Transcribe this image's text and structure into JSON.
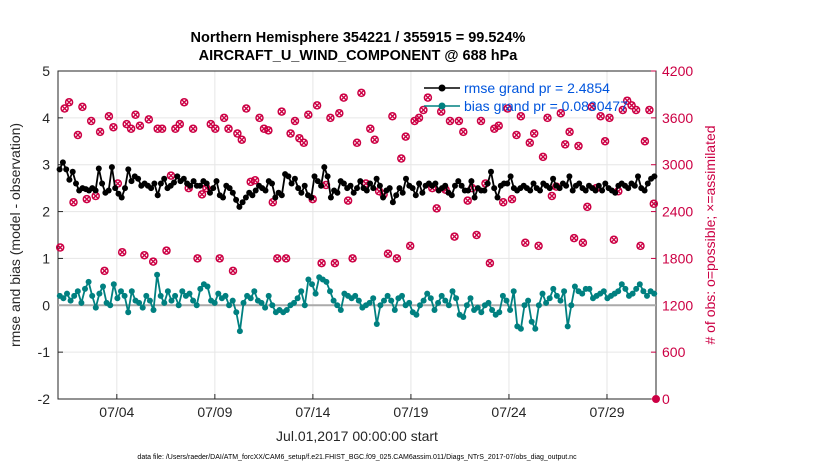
{
  "chart_data": {
    "type": "line",
    "title_line1": "Northern Hemisphere 354221 / 355915 = 99.524%",
    "title_line2": "AIRCRAFT_U_WIND_COMPONENT @ 688 hPa",
    "xlabel": "Jul.01,2017 00:00:00 start",
    "ylabel": "rmse and bias (model - observation)",
    "ylabel_right": "# of obs: o=possible; ×=assimilated",
    "x_start_label": "Jul.01,2017 00:00:00 start",
    "x_range_days": [
      1.0,
      31.5
    ],
    "x_ticks": [
      {
        "day": 4,
        "label": "07/04"
      },
      {
        "day": 9,
        "label": "07/09"
      },
      {
        "day": 14,
        "label": "07/14"
      },
      {
        "day": 19,
        "label": "07/19"
      },
      {
        "day": 24,
        "label": "07/24"
      },
      {
        "day": 29,
        "label": "07/29"
      }
    ],
    "ylim": [
      -2,
      5
    ],
    "y_ticks": [
      "-2",
      "-1",
      "0",
      "1",
      "2",
      "3",
      "4",
      "5"
    ],
    "ylim_right": [
      0,
      4200
    ],
    "y_ticks_right": [
      "0",
      "600",
      "1200",
      "1800",
      "2400",
      "3000",
      "3600",
      "4200"
    ],
    "grid": true,
    "legend": "top-right",
    "series": [
      {
        "name": "rmse grand pr = 2.4854",
        "color": "#000000",
        "marker": "filled-circle",
        "values": [
          2.9,
          3.05,
          2.9,
          2.68,
          2.85,
          2.6,
          2.45,
          2.5,
          2.48,
          2.45,
          2.5,
          2.45,
          2.92,
          2.6,
          2.4,
          2.45,
          2.95,
          2.5,
          2.38,
          2.3,
          2.5,
          2.9,
          2.65,
          2.75,
          2.7,
          2.55,
          2.6,
          2.55,
          2.5,
          2.6,
          2.35,
          2.6,
          2.7,
          2.5,
          2.55,
          2.62,
          2.75,
          2.65,
          2.7,
          2.6,
          2.55,
          2.65,
          2.55,
          2.55,
          2.65,
          2.6,
          2.4,
          2.5,
          2.65,
          2.35,
          2.3,
          2.55,
          2.5,
          2.4,
          2.25,
          2.1,
          2.2,
          2.3,
          2.4,
          2.35,
          2.45,
          2.55,
          2.5,
          2.45,
          2.65,
          2.6,
          2.3,
          2.4,
          2.35,
          2.8,
          2.75,
          2.6,
          2.7,
          2.5,
          2.4,
          2.55,
          2.35,
          2.3,
          2.75,
          2.65,
          2.55,
          2.95,
          2.75,
          2.3,
          2.45,
          2.4,
          2.65,
          2.6,
          2.5,
          2.55,
          2.4,
          2.5,
          2.65,
          2.5,
          2.45,
          2.6,
          2.5,
          2.7,
          2.55,
          2.3,
          2.45,
          2.5,
          2.2,
          2.35,
          2.5,
          2.4,
          2.7,
          2.55,
          2.5,
          2.35,
          2.6,
          2.4,
          2.55,
          2.6,
          2.55,
          2.6,
          2.45,
          2.5,
          2.55,
          2.4,
          2.35,
          2.55,
          2.65,
          2.55,
          2.45,
          2.45,
          2.65,
          2.3,
          2.5,
          2.45,
          2.45,
          2.6,
          2.85,
          2.5,
          2.3,
          2.55,
          2.6,
          2.6,
          2.75,
          2.5,
          2.45,
          2.5,
          2.55,
          2.5,
          2.45,
          2.6,
          2.5,
          2.45,
          2.6,
          2.55,
          2.5,
          2.7,
          2.55,
          2.5,
          2.6,
          2.55,
          2.75,
          2.45,
          2.55,
          2.6,
          2.5,
          2.45,
          2.55,
          2.5,
          2.45,
          2.55,
          2.45,
          2.6,
          2.5,
          2.45,
          2.4,
          2.55,
          2.6,
          2.55,
          2.5,
          2.6,
          2.55,
          2.75,
          2.5,
          2.45,
          2.6,
          2.7,
          2.75
        ]
      },
      {
        "name": "bias grand pr = 0.0830477",
        "color": "#008080",
        "marker": "filled-circle",
        "values": [
          0.2,
          0.15,
          0.25,
          0.1,
          0.2,
          0.3,
          0.05,
          0.35,
          0.5,
          0.2,
          -0.05,
          0.25,
          0.4,
          0.05,
          0.0,
          0.45,
          0.15,
          0.3,
          0.2,
          -0.15,
          0.3,
          0.1,
          0.05,
          -0.05,
          0.2,
          0.1,
          -0.1,
          0.65,
          0.2,
          0.05,
          0.3,
          0.1,
          0.2,
          0.0,
          0.3,
          0.2,
          0.25,
          0.1,
          0.0,
          0.35,
          0.45,
          0.4,
          0.1,
          0.05,
          0.25,
          0.15,
          0.2,
          0.0,
          0.1,
          -0.15,
          -0.55,
          0.05,
          0.2,
          0.15,
          0.3,
          0.1,
          0.05,
          -0.05,
          0.2,
          0.0,
          -0.15,
          -0.1,
          -0.15,
          -0.1,
          0.0,
          0.05,
          0.15,
          0.3,
          0.0,
          0.55,
          0.45,
          0.25,
          0.6,
          0.55,
          0.5,
          0.3,
          0.1,
          0.0,
          -0.1,
          0.25,
          0.2,
          0.15,
          0.2,
          0.1,
          -0.05,
          0.0,
          0.05,
          0.15,
          -0.4,
          0.0,
          0.1,
          0.2,
          0.1,
          -0.1,
          0.15,
          0.2,
          0.0,
          0.05,
          -0.15,
          -0.2,
          0.0,
          0.1,
          0.25,
          0.15,
          -0.1,
          0.05,
          0.2,
          0.1,
          0.0,
          0.3,
          0.15,
          -0.2,
          -0.25,
          0.0,
          0.15,
          -0.1,
          -0.05,
          -0.15,
          0.0,
          0.05,
          -0.1,
          -0.2,
          -0.15,
          0.2,
          0.1,
          -0.1,
          0.3,
          -0.45,
          -0.5,
          0.0,
          0.1,
          -0.35,
          -0.5,
          0.0,
          0.25,
          0.05,
          0.15,
          0.35,
          0.2,
          0.1,
          0.3,
          -0.45,
          0.0,
          0.4,
          0.3,
          0.25,
          0.35,
          0.35,
          0.15,
          0.2,
          0.25,
          0.3,
          0.15,
          0.2,
          0.25,
          0.3,
          0.45,
          0.35,
          0.2,
          0.25,
          0.35,
          0.45,
          0.3,
          0.2,
          0.3,
          0.25
        ]
      },
      {
        "name": "obs possible",
        "color": "#cc0044",
        "marker": "open-circle",
        "axis": "right",
        "values": [
          1940,
          3720,
          3800,
          2520,
          3380,
          3740,
          2560,
          3560,
          2600,
          3420,
          1640,
          3620,
          3480,
          2760,
          1880,
          3520,
          3460,
          3640,
          3500,
          1840,
          3580,
          1760,
          3460,
          3460,
          1900,
          2860,
          3460,
          3520,
          3800,
          2700,
          3460,
          1800,
          2620,
          2700,
          3520,
          3460,
          1800,
          3600,
          3460,
          1640,
          3400,
          3320,
          3720,
          2780,
          2800,
          3600,
          3460,
          3440,
          2520,
          1800,
          3680,
          1800,
          3400,
          3560,
          3340,
          3280,
          3640,
          2560,
          3760,
          1740,
          2740,
          3600,
          1740,
          3660,
          3860,
          2540,
          1800,
          3280,
          3920,
          2760,
          3460,
          3320,
          2660,
          2620,
          1860,
          3620,
          1800,
          3080,
          3360,
          1960,
          3560,
          3600,
          3700,
          3860,
          2700,
          2440,
          3680,
          2680,
          3560,
          2080,
          3560,
          3420,
          2540,
          2700,
          2100,
          3560,
          2760,
          1740,
          3460,
          3500,
          2520,
          3720,
          2560,
          3380,
          3620,
          2000,
          3280,
          3400,
          1960,
          3100,
          3600,
          2600,
          2720,
          3660,
          3260,
          3420,
          2060,
          3240,
          2000,
          2460,
          3740,
          2700,
          3620,
          3300,
          3600,
          2040,
          2660,
          3700,
          3820,
          3760,
          3700,
          1960,
          3300,
          3700,
          2500
        ]
      }
    ]
  },
  "footer": "data file: /Users/raeder/DAI/ATM_forcXX/CAM6_setup/f.e21.FHIST_BGC.f09_025.CAM6assim.011/Diags_NTrS_2017-07/obs_diag_output.nc"
}
